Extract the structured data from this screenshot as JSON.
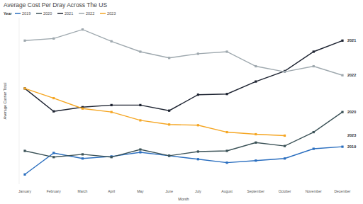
{
  "chart_data": {
    "type": "line",
    "title": "Average Cost Per Dray Across The US",
    "legend_title": "Year",
    "x_label": "Month",
    "y_label": "Average Carrier Total",
    "categories": [
      "January",
      "February",
      "March",
      "April",
      "May",
      "June",
      "July",
      "August",
      "September",
      "October",
      "November",
      "December"
    ],
    "series": [
      {
        "name": "2019",
        "color": "#2a6ebf",
        "values": [
          24,
          55,
          47,
          50,
          56,
          51,
          46,
          41,
          44,
          47,
          61,
          64
        ]
      },
      {
        "name": "2020",
        "color": "#3b5257",
        "values": [
          58,
          49,
          53,
          49,
          60,
          51,
          57,
          58,
          70,
          65,
          85,
          114
        ]
      },
      {
        "name": "2021",
        "color": "#1c2230",
        "values": [
          148,
          115,
          121,
          124,
          124,
          116,
          139,
          140,
          158,
          173,
          201,
          217
        ]
      },
      {
        "name": "2022",
        "color": "#9ea8ae",
        "values": [
          217,
          220,
          233,
          216,
          201,
          192,
          198,
          201,
          180,
          172,
          180,
          167
        ]
      },
      {
        "name": "2023",
        "color": "#f5a623",
        "values": [
          148,
          134,
          119,
          114,
          102,
          96,
          95,
          85,
          82,
          80,
          null,
          null
        ]
      }
    ],
    "ylim": [
      10,
      250
    ],
    "tick_labels": "x",
    "grid": false,
    "legend": "top-left",
    "marker": "square",
    "line_style": "solid"
  }
}
